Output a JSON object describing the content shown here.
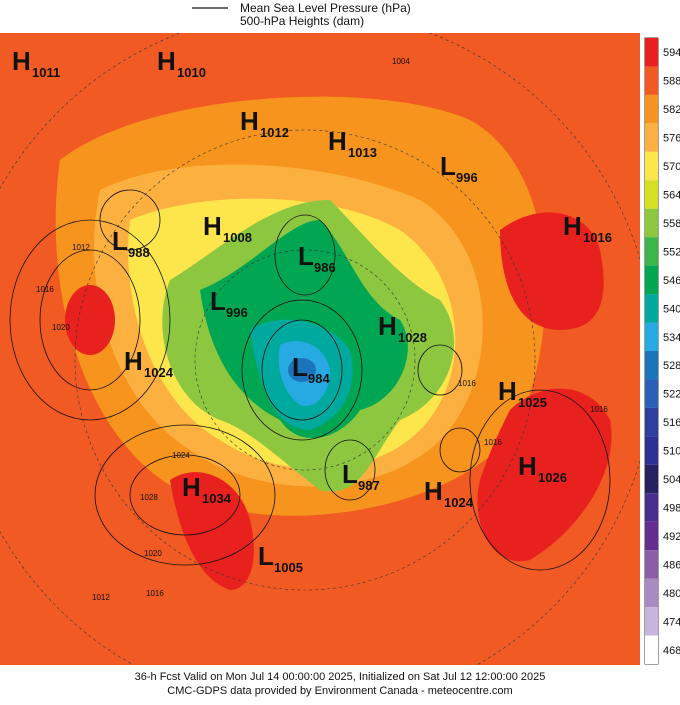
{
  "legend": [
    "Mean Sea Level Pressure (hPa)",
    "500-hPa Heights (dam)"
  ],
  "colorbar": [
    {
      "value": 594,
      "color": "#e8211f"
    },
    {
      "value": 588,
      "color": "#f15a22"
    },
    {
      "value": 582,
      "color": "#f7941d"
    },
    {
      "value": 576,
      "color": "#fbb040"
    },
    {
      "value": 570,
      "color": "#fde64b"
    },
    {
      "value": 564,
      "color": "#d7df23"
    },
    {
      "value": 558,
      "color": "#8dc63f"
    },
    {
      "value": 552,
      "color": "#39b54a"
    },
    {
      "value": 546,
      "color": "#00a651"
    },
    {
      "value": 540,
      "color": "#00a99d"
    },
    {
      "value": 534,
      "color": "#27aae1"
    },
    {
      "value": 528,
      "color": "#1c75bc"
    },
    {
      "value": 522,
      "color": "#2b5fb8"
    },
    {
      "value": 516,
      "color": "#2e3f9e"
    },
    {
      "value": 510,
      "color": "#2e3192"
    },
    {
      "value": 504,
      "color": "#262262"
    },
    {
      "value": 498,
      "color": "#4b2c8f"
    },
    {
      "value": 492,
      "color": "#662d91"
    },
    {
      "value": 486,
      "color": "#8b5ca8"
    },
    {
      "value": 480,
      "color": "#a98bc4"
    },
    {
      "value": 474,
      "color": "#c7b5dc"
    },
    {
      "value": 468,
      "color": "#ffffff"
    }
  ],
  "centers": [
    {
      "letter": "H",
      "value": 1011
    },
    {
      "letter": "H",
      "value": 1010
    },
    {
      "letter": "H",
      "value": 1012
    },
    {
      "letter": "H",
      "value": 1013
    },
    {
      "letter": "L",
      "value": 996
    },
    {
      "letter": "H",
      "value": 1008
    },
    {
      "letter": "L",
      "value": 986
    },
    {
      "letter": "L",
      "value": 988
    },
    {
      "letter": "H",
      "value": 1016
    },
    {
      "letter": "L",
      "value": 996
    },
    {
      "letter": "H",
      "value": 1028
    },
    {
      "letter": "H",
      "value": 1024
    },
    {
      "letter": "L",
      "value": 984
    },
    {
      "letter": "H",
      "value": 1025
    },
    {
      "letter": "H",
      "value": 1026
    },
    {
      "letter": "L",
      "value": 987
    },
    {
      "letter": "H",
      "value": 1034
    },
    {
      "letter": "H",
      "value": 1024
    },
    {
      "letter": "L",
      "value": 1005
    }
  ],
  "isobar_labels": [
    1004,
    1012,
    1016,
    1020,
    1024,
    1028,
    1020,
    1016,
    1012,
    1016,
    1016,
    1016
  ],
  "footer": [
    "36-h Fcst Valid on Mon Jul 14 00:00:00 2025, Initialized on Sat Jul 12 12:00:00 2025",
    "CMC-GDPS data provided by Environment Canada - meteocentre.com"
  ]
}
